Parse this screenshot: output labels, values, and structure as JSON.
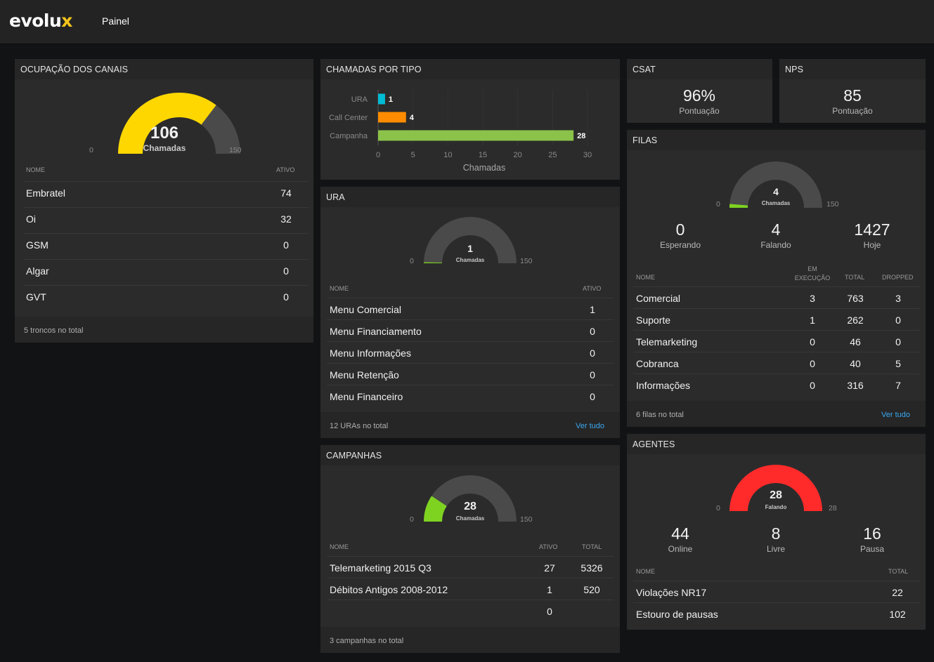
{
  "app": {
    "logo_main": "evolu",
    "logo_x": "x",
    "nav_label": "Painel"
  },
  "colors": {
    "yellow": "#ffd700",
    "orange": "#ff8c00",
    "green": "#8bc34a",
    "cyan": "#00bcd4",
    "red": "#ff2a2a",
    "lime": "#7ed321",
    "track": "#4a4a4a"
  },
  "channels": {
    "title": "OCUPAÇÃO DOS CANAIS",
    "gauge": {
      "value": 106,
      "min": 0,
      "max": 150,
      "caption": "Chamadas",
      "color": "#ffd700"
    },
    "col_name": "NOME",
    "col_active": "ATIVO",
    "rows": [
      {
        "name": "Embratel",
        "active": "74"
      },
      {
        "name": "Oi",
        "active": "32"
      },
      {
        "name": "GSM",
        "active": "0"
      },
      {
        "name": "Algar",
        "active": "0"
      },
      {
        "name": "GVT",
        "active": "0"
      }
    ],
    "footer": "5 troncos no total"
  },
  "calls_by_type": {
    "title": "CHAMADAS POR TIPO",
    "chart_data": {
      "type": "bar",
      "orientation": "horizontal",
      "categories": [
        "URA",
        "Call Center",
        "Campanha"
      ],
      "values": [
        1,
        4,
        28
      ],
      "colors": [
        "#00bcd4",
        "#ff8c00",
        "#8bc34a"
      ],
      "xlabel": "Chamadas",
      "xlim": [
        0,
        30
      ],
      "xticks": [
        "0",
        "5",
        "10",
        "15",
        "20",
        "25",
        "30"
      ],
      "data_labels": [
        "1",
        "4",
        "28"
      ]
    }
  },
  "ura": {
    "title": "URA",
    "gauge": {
      "value": 1,
      "min": 0,
      "max": 150,
      "caption": "Chamadas",
      "color": "#7ed321"
    },
    "col_name": "NOME",
    "col_active": "ATIVO",
    "rows": [
      {
        "name": "Menu Comercial",
        "active": "1"
      },
      {
        "name": "Menu Financiamento",
        "active": "0"
      },
      {
        "name": "Menu Informações",
        "active": "0"
      },
      {
        "name": "Menu Retenção",
        "active": "0"
      },
      {
        "name": "Menu Financeiro",
        "active": "0"
      }
    ],
    "footer": "12 URAs no total",
    "link": "Ver tudo"
  },
  "campaigns": {
    "title": "CAMPANHAS",
    "gauge": {
      "value": 28,
      "min": 0,
      "max": 150,
      "caption": "Chamadas",
      "color": "#7ed321"
    },
    "col_name": "NOME",
    "col_active": "ATIVO",
    "col_total": "TOTAL",
    "rows": [
      {
        "name": "Telemarketing 2015 Q3",
        "active": "27",
        "total": "5326"
      },
      {
        "name": "Débitos Antigos 2008-2012",
        "active": "1",
        "total": "520"
      },
      {
        "name": "",
        "active": "0",
        "total": ""
      }
    ],
    "footer": "3 campanhas no total"
  },
  "csat": {
    "title": "CSAT",
    "value": "96%",
    "label": "Pontuação"
  },
  "nps": {
    "title": "NPS",
    "value": "85",
    "label": "Pontuação"
  },
  "queues": {
    "title": "FILAS",
    "gauge": {
      "value": 4,
      "min": 0,
      "max": 150,
      "caption": "Chamadas",
      "color": "#7ed321"
    },
    "stats": [
      {
        "value": "0",
        "label": "Esperando"
      },
      {
        "value": "4",
        "label": "Falando"
      },
      {
        "value": "1427",
        "label": "Hoje"
      }
    ],
    "col_name": "NOME",
    "col_exec_1": "EM",
    "col_exec_2": "EXECUÇÃO",
    "col_total": "TOTAL",
    "col_dropped": "DROPPED",
    "rows": [
      {
        "name": "Comercial",
        "exec": "3",
        "total": "763",
        "dropped": "3"
      },
      {
        "name": "Suporte",
        "exec": "1",
        "total": "262",
        "dropped": "0"
      },
      {
        "name": "Telemarketing",
        "exec": "0",
        "total": "46",
        "dropped": "0"
      },
      {
        "name": "Cobranca",
        "exec": "0",
        "total": "40",
        "dropped": "5"
      },
      {
        "name": "Informações",
        "exec": "0",
        "total": "316",
        "dropped": "7"
      }
    ],
    "footer": "6 filas no total",
    "link": "Ver tudo"
  },
  "agents": {
    "title": "AGENTES",
    "gauge": {
      "value": 28,
      "min": 0,
      "max": 28,
      "caption": "Falando",
      "color": "#ff2a2a"
    },
    "stats": [
      {
        "value": "44",
        "label": "Online"
      },
      {
        "value": "8",
        "label": "Livre"
      },
      {
        "value": "16",
        "label": "Pausa"
      }
    ],
    "col_name": "NOME",
    "col_total": "TOTAL",
    "rows": [
      {
        "name": "Violações NR17",
        "total": "22"
      },
      {
        "name": "Estouro de pausas",
        "total": "102"
      }
    ]
  }
}
